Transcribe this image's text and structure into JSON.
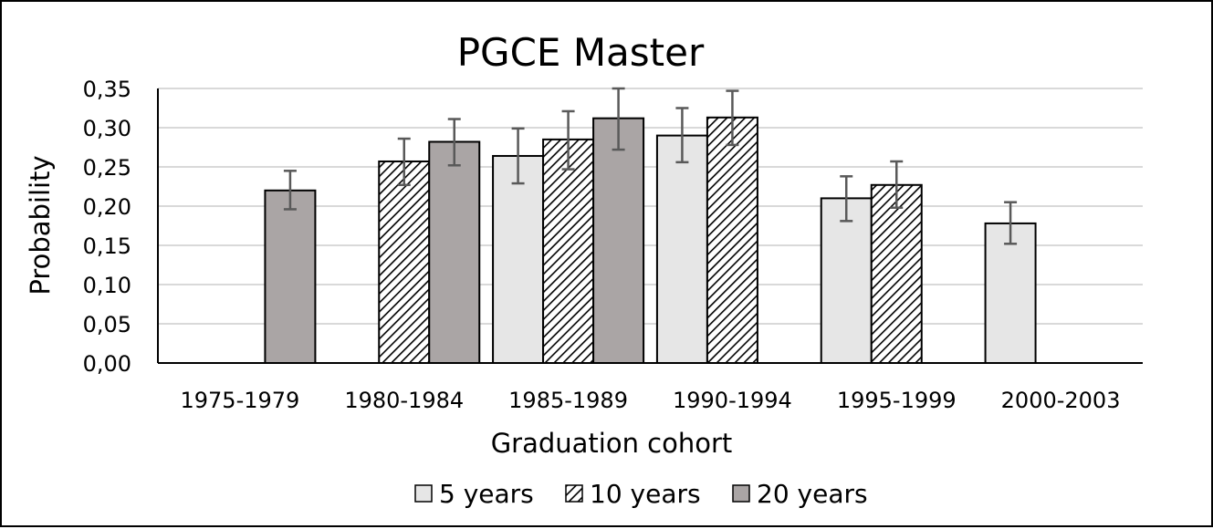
{
  "chart_data": {
    "type": "bar",
    "title": "PGCE Master",
    "xlabel": "Graduation cohort",
    "ylabel": "Probability",
    "ylim": [
      0,
      0.35
    ],
    "yticks": [
      "0,00",
      "0,05",
      "0,10",
      "0,15",
      "0,20",
      "0,25",
      "0,30",
      "0,35"
    ],
    "categories": [
      "1975-1979",
      "1980-1984",
      "1985-1989",
      "1990-1994",
      "1995-1999",
      "2000-2003"
    ],
    "series": [
      {
        "name": "5 years",
        "values": [
          null,
          null,
          0.264,
          0.29,
          0.21,
          0.178
        ],
        "error_low": [
          null,
          null,
          0.229,
          0.256,
          0.181,
          0.152
        ],
        "error_high": [
          null,
          null,
          0.299,
          0.325,
          0.238,
          0.205
        ]
      },
      {
        "name": "10 years",
        "values": [
          null,
          0.257,
          0.285,
          0.313,
          0.227,
          null
        ],
        "error_low": [
          null,
          0.227,
          0.247,
          0.278,
          0.198,
          null
        ],
        "error_high": [
          null,
          0.286,
          0.321,
          0.347,
          0.257,
          null
        ]
      },
      {
        "name": "20 years",
        "values": [
          0.22,
          0.282,
          0.312,
          null,
          null,
          null
        ],
        "error_low": [
          0.196,
          0.252,
          0.272,
          null,
          null,
          null
        ],
        "error_high": [
          0.245,
          0.311,
          0.35,
          null,
          null,
          null
        ]
      }
    ],
    "legend_position": "bottom",
    "grid": true,
    "colors": {
      "5 years": "#e6e6e6",
      "10 years": "#ffffff",
      "20 years": "#aaa5a5",
      "errorbar": "#595959",
      "grid": "#d9d9d9"
    }
  }
}
